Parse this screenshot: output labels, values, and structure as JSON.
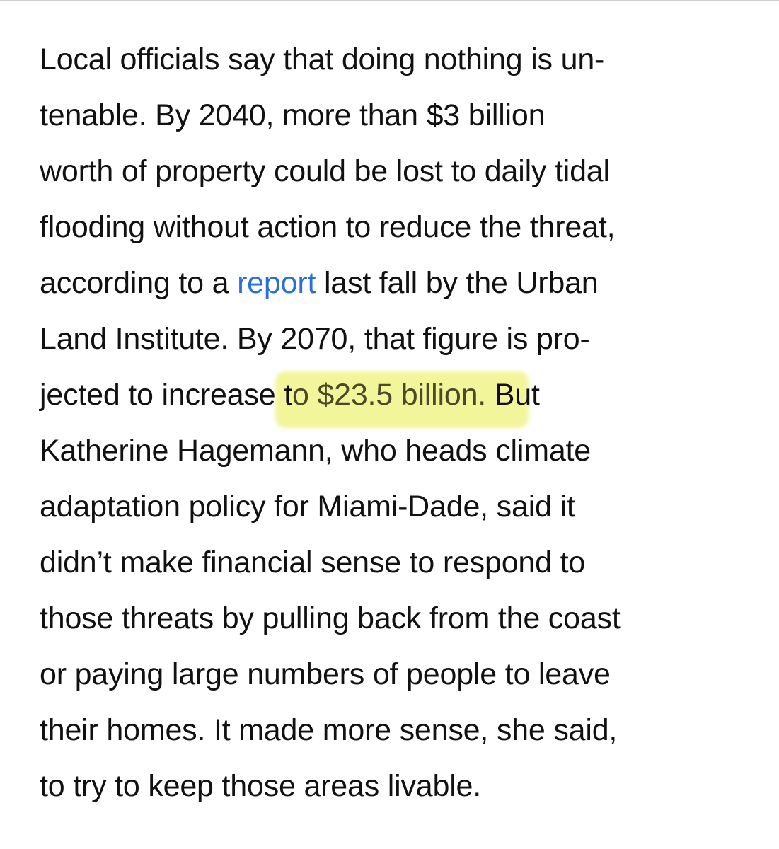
{
  "article": {
    "lines": [
      "Local officials say that doing nothing is un-",
      "tenable. By 2040, more than $3 billion",
      "worth of property could be lost to daily tidal",
      "flooding without action to reduce the threat,",
      {
        "before": "according to a ",
        "link": "report",
        "after": " last fall by the Urban"
      },
      "Land Institute. By 2070, that figure is pro-",
      {
        "before": "jected to increase t",
        "highlight": "o $23.5 billion.",
        "after": " But"
      },
      "Katherine Hagemann, who heads climate",
      "adaptation policy for Miami-Dade, said it",
      "didn’t make financial sense to respond to",
      "those threats by pulling back from the coast",
      "or paying large numbers of people to leave",
      "their homes. It made more sense, she said,",
      "to try to keep those areas livable."
    ]
  },
  "colors": {
    "text": "#111111",
    "link": "#2b6fd4",
    "highlight": "#f3f59a"
  }
}
